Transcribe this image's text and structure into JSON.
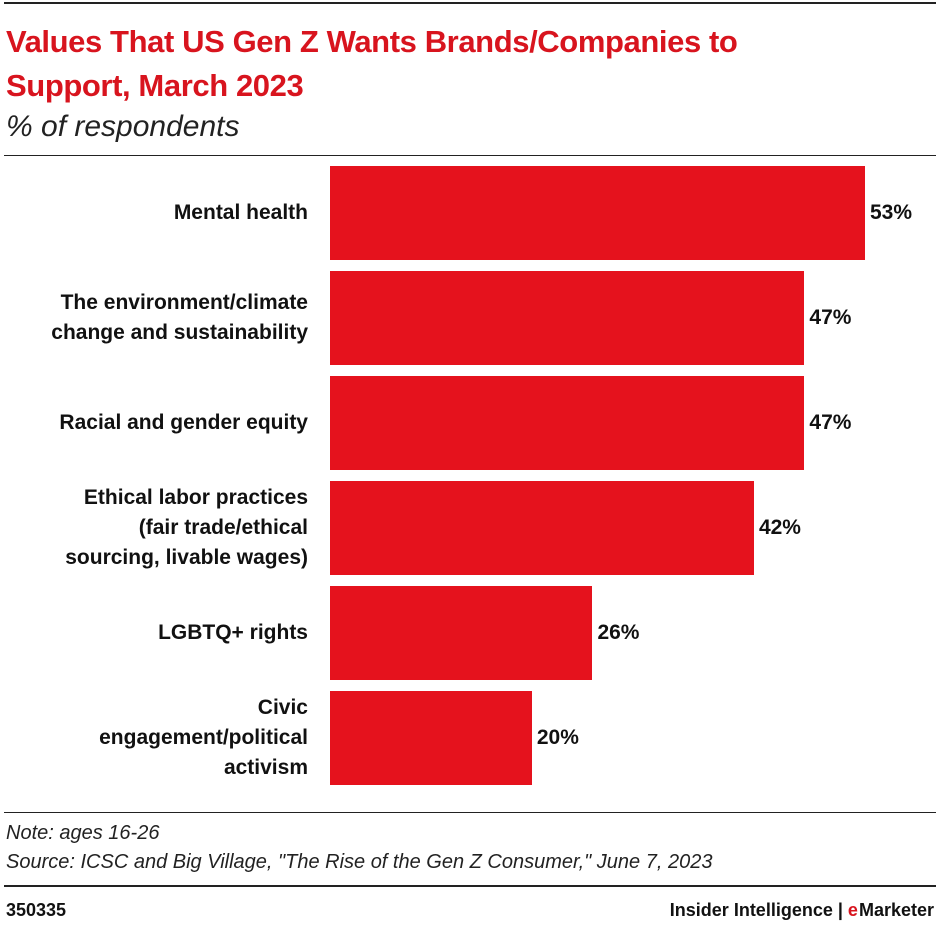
{
  "chart_data": {
    "type": "bar",
    "orientation": "horizontal",
    "title": "Values That US Gen Z Wants Brands/Companies to\nSupport, March 2023",
    "subtitle": "% of respondents",
    "categories": [
      "Mental health",
      "The environment/climate\nchange and sustainability",
      "Racial and gender equity",
      "Ethical labor practices\n(fair trade/ethical\nsourcing, livable wages)",
      "LGBTQ+ rights",
      "Civic\nengagement/political\nactivism"
    ],
    "values": [
      53,
      47,
      47,
      42,
      26,
      20
    ],
    "value_labels": [
      "53%",
      "47%",
      "47%",
      "42%",
      "26%",
      "20%"
    ],
    "color": "#e5121d",
    "note": "Note: ages 16-26",
    "source": "Source: ICSC and Big Village, \"The Rise of the Gen Z Consumer,\" June 7, 2023",
    "chart_id": "350335",
    "logo": {
      "left": "Insider Intelligence",
      "separator": "|",
      "mark": "e",
      "name": "Marketer"
    }
  }
}
